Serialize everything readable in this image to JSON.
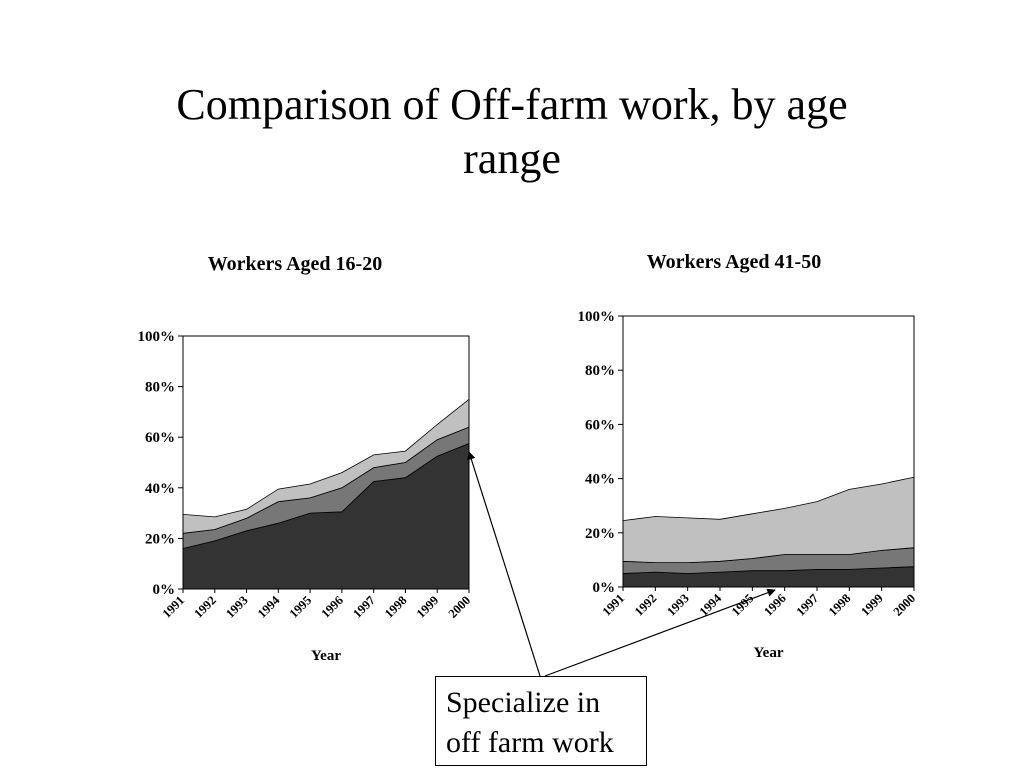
{
  "slide": {
    "title_line1": "Comparison of Off-farm work, by age",
    "title_line2": "range"
  },
  "callout": {
    "line1": "Specialize in",
    "line2": "off farm work"
  },
  "chart_data": [
    {
      "type": "area",
      "stacked": true,
      "title": "Workers Aged 16-20",
      "xlabel": "Year",
      "ylabel": "",
      "ylim": [
        0,
        100
      ],
      "yticks": [
        "0%",
        "20%",
        "40%",
        "60%",
        "80%",
        "100%"
      ],
      "x": [
        "1991",
        "1992",
        "1993",
        "1994",
        "1995",
        "1996",
        "1997",
        "1998",
        "1999",
        "2000"
      ],
      "series": [
        {
          "color": "#333333",
          "values": [
            16,
            19,
            23,
            26,
            30,
            30.5,
            42.5,
            44,
            52.5,
            57.5
          ]
        },
        {
          "color": "#777777",
          "values": [
            6,
            4.5,
            5,
            8.5,
            6,
            9.5,
            5.5,
            6,
            6.5,
            6.5
          ]
        },
        {
          "color": "#c0c0c0",
          "values": [
            7.5,
            5,
            3.5,
            5,
            5.5,
            6,
            5,
            4.5,
            6,
            11
          ]
        }
      ]
    },
    {
      "type": "area",
      "stacked": true,
      "title": "Workers Aged 41-50",
      "xlabel": "Year",
      "ylabel": "",
      "ylim": [
        0,
        100
      ],
      "yticks": [
        "0%",
        "20%",
        "40%",
        "60%",
        "80%",
        "100%"
      ],
      "x": [
        "1991",
        "1992",
        "1993",
        "1994",
        "1995",
        "1996",
        "1997",
        "1998",
        "1999",
        "2000"
      ],
      "series": [
        {
          "color": "#333333",
          "values": [
            5,
            5.5,
            5,
            5.5,
            6,
            6,
            6.5,
            6.5,
            7,
            7.5
          ]
        },
        {
          "color": "#777777",
          "values": [
            4.5,
            3.5,
            4,
            4,
            4.5,
            6,
            5.5,
            5.5,
            6.5,
            7
          ]
        },
        {
          "color": "#c0c0c0",
          "values": [
            15,
            17,
            16.5,
            15.5,
            16.5,
            17,
            19.5,
            24,
            24.5,
            26
          ]
        }
      ]
    }
  ]
}
